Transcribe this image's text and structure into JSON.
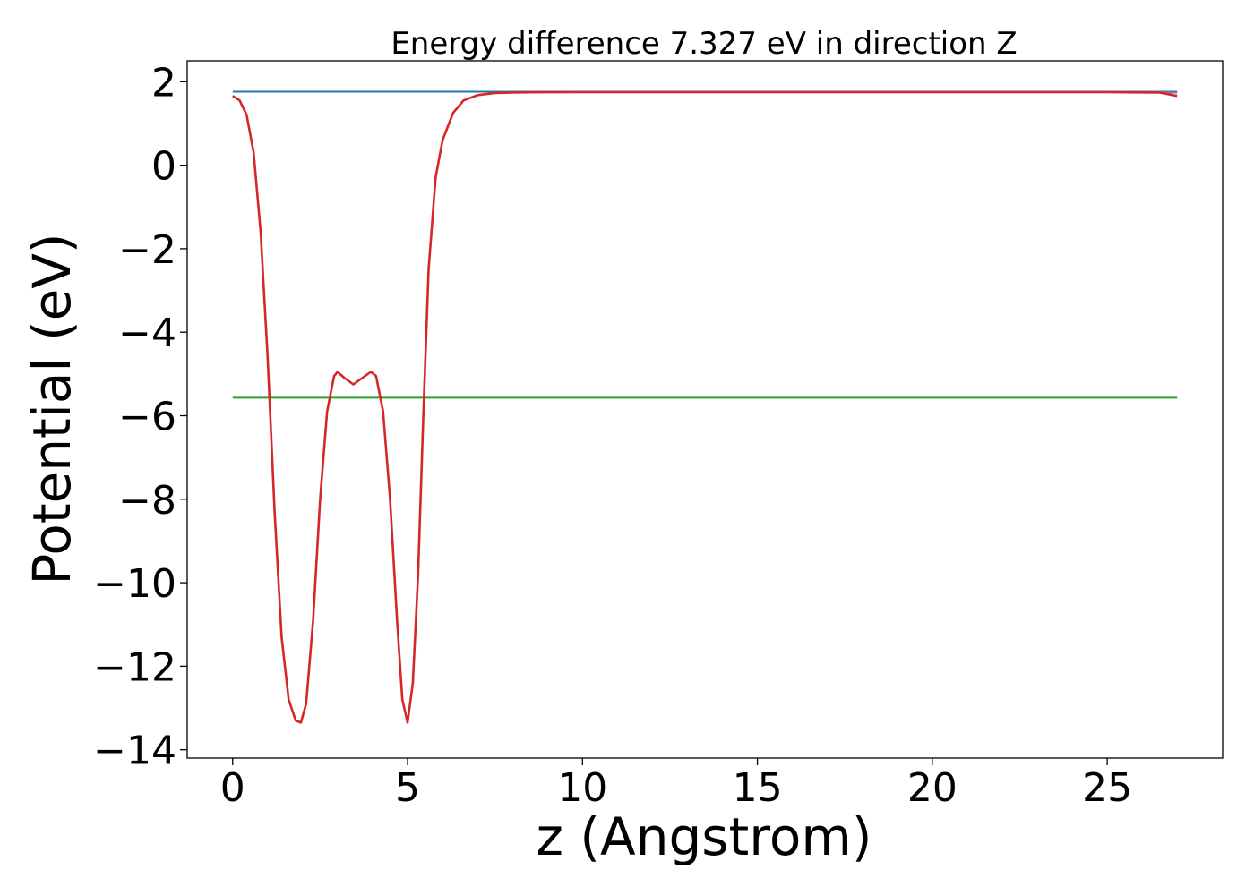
{
  "chart_data": {
    "type": "line",
    "title": "Energy difference 7.327 eV in direction Z",
    "xlabel": "z (Angstrom)",
    "ylabel": "Potential (eV)",
    "xlim": [
      -1.3,
      28.3
    ],
    "ylim": [
      -14.2,
      2.5
    ],
    "x_ticks": [
      0,
      5,
      10,
      15,
      20,
      25
    ],
    "y_ticks": [
      2,
      0,
      -2,
      -4,
      -6,
      -8,
      -10,
      -12,
      -14
    ],
    "grid": false,
    "legend": "none",
    "series": [
      {
        "color": "#1f77b4",
        "style": "hline",
        "x": [
          0,
          27
        ],
        "y": [
          1.76,
          1.76
        ]
      },
      {
        "color": "#2ca02c",
        "style": "hline",
        "x": [
          0,
          27
        ],
        "y": [
          -5.57,
          -5.57
        ]
      },
      {
        "color": "#9467bd",
        "style": "line",
        "x": [
          8.0,
          10,
          15,
          20,
          25,
          27
        ],
        "y": [
          1.74,
          1.75,
          1.75,
          1.75,
          1.75,
          1.74
        ]
      },
      {
        "color": "#d62728",
        "style": "line",
        "x": [
          0,
          0.2,
          0.4,
          0.6,
          0.8,
          1.0,
          1.2,
          1.4,
          1.6,
          1.8,
          1.95,
          2.1,
          2.3,
          2.5,
          2.7,
          2.9,
          3.0,
          3.2,
          3.45,
          3.7,
          3.95,
          4.1,
          4.3,
          4.5,
          4.7,
          4.85,
          5.0,
          5.15,
          5.3,
          5.45,
          5.6,
          5.8,
          6.0,
          6.3,
          6.6,
          7.0,
          7.5,
          8.0,
          9,
          10,
          15,
          20,
          25,
          26.5,
          27
        ],
        "y": [
          1.66,
          1.55,
          1.2,
          0.3,
          -1.6,
          -4.6,
          -8.3,
          -11.3,
          -12.8,
          -13.3,
          -13.35,
          -12.9,
          -10.9,
          -8.0,
          -5.9,
          -5.05,
          -4.95,
          -5.1,
          -5.25,
          -5.1,
          -4.95,
          -5.05,
          -5.9,
          -8.0,
          -10.9,
          -12.8,
          -13.35,
          -12.4,
          -9.8,
          -6.0,
          -2.5,
          -0.3,
          0.6,
          1.25,
          1.55,
          1.68,
          1.73,
          1.74,
          1.75,
          1.75,
          1.75,
          1.75,
          1.75,
          1.74,
          1.66
        ]
      }
    ]
  }
}
